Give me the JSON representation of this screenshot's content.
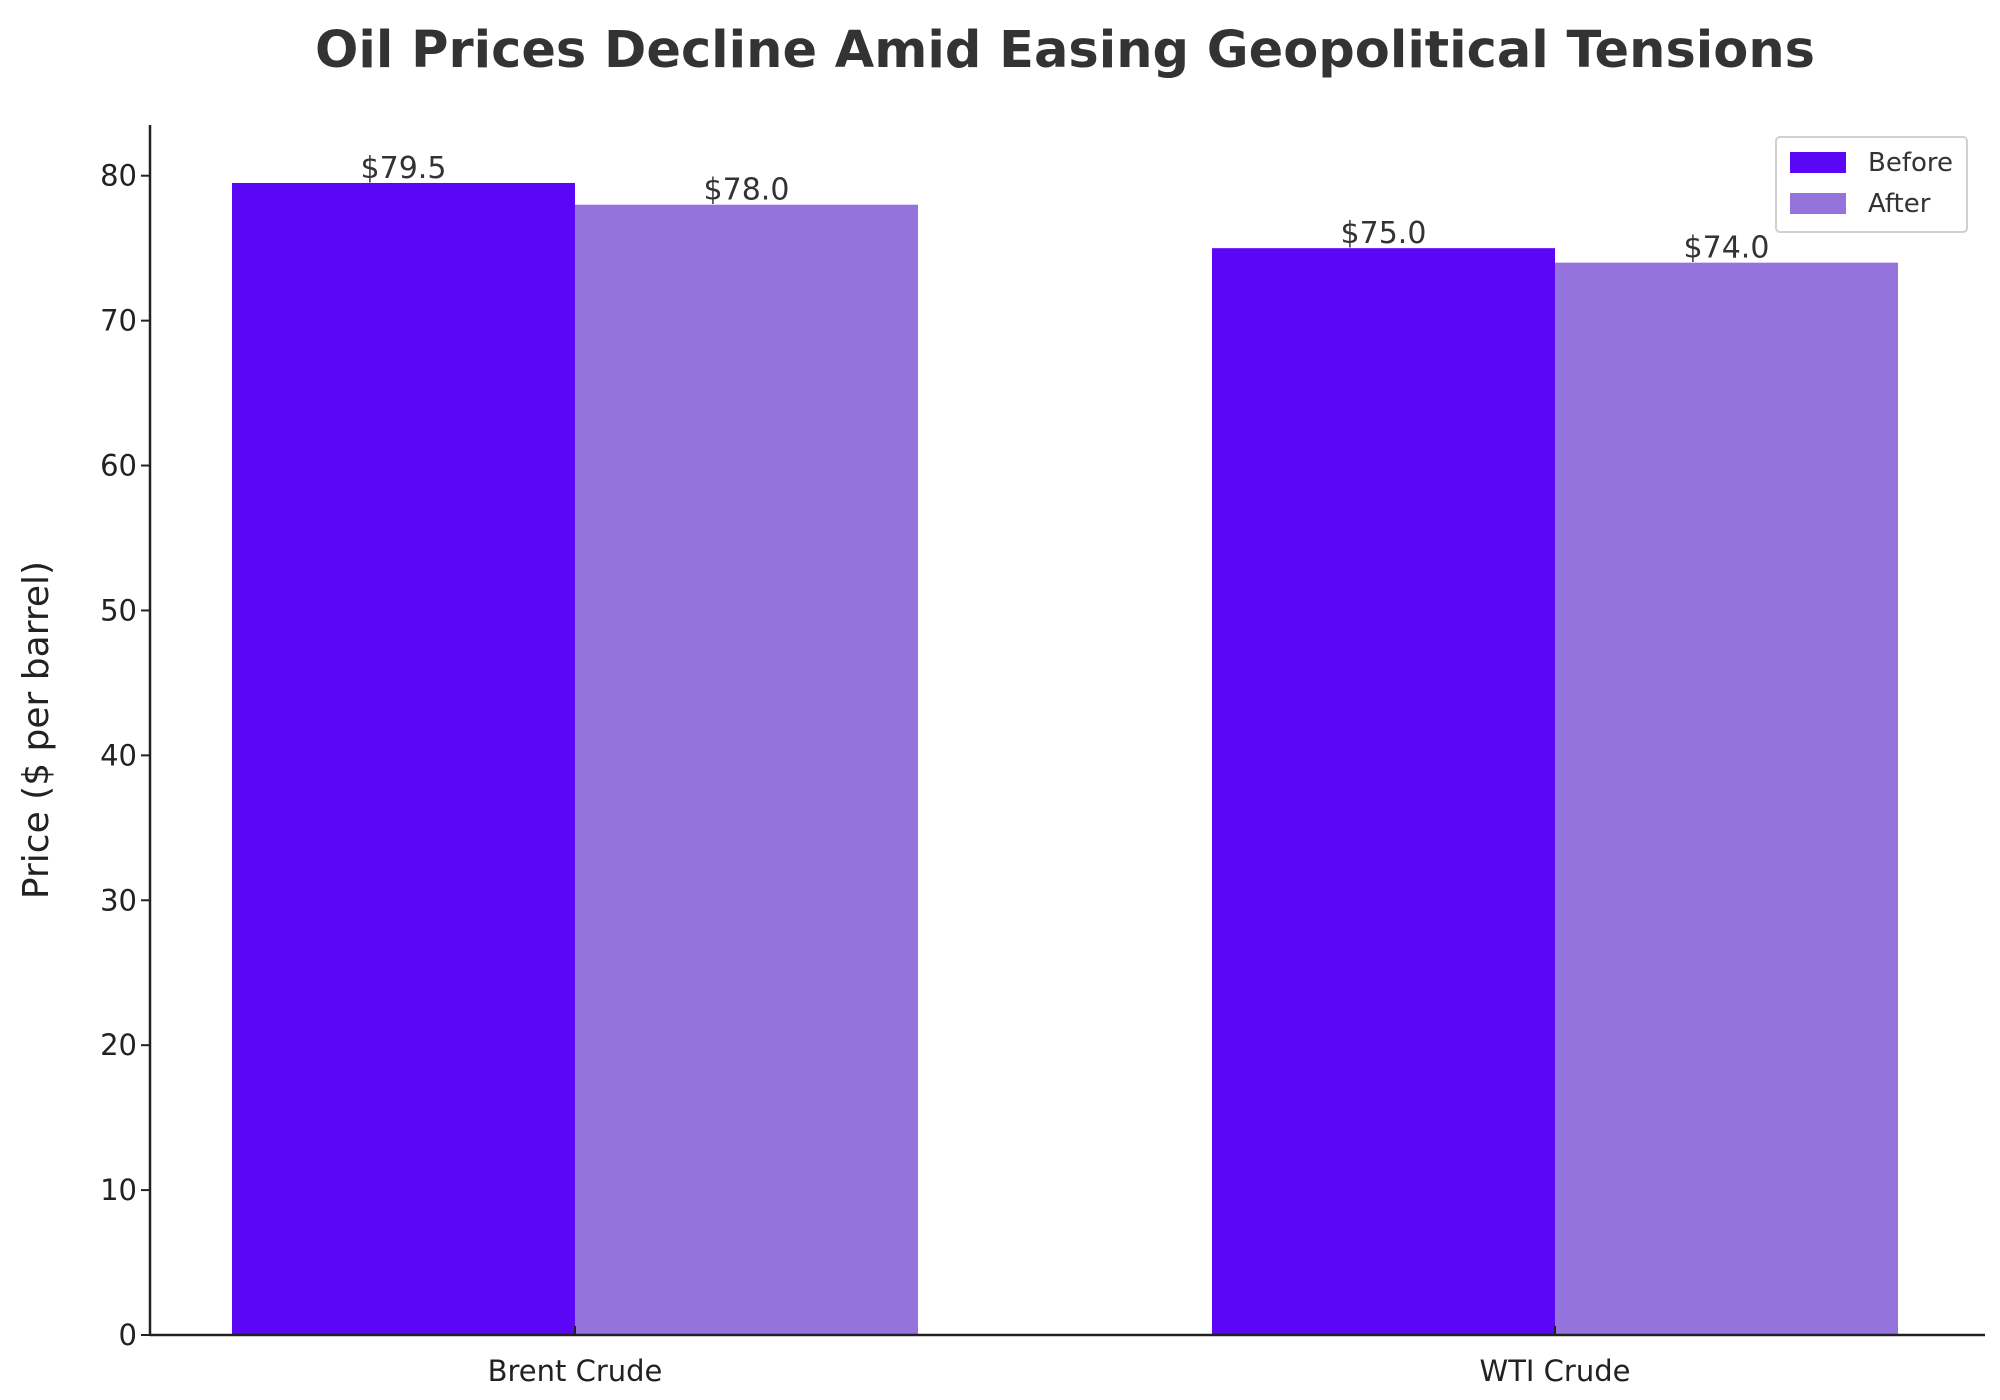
{
  "chart_data": {
    "type": "bar",
    "title": "Oil Prices Decline Amid Easing Geopolitical Tensions",
    "xlabel": "",
    "ylabel": "Price ($ per barrel)",
    "categories": [
      "Brent Crude",
      "WTI Crude"
    ],
    "series": [
      {
        "name": "Before",
        "color": "#5b06f5",
        "values": [
          79.5,
          75.0
        ],
        "labels": [
          "$79.5",
          "$75.0"
        ]
      },
      {
        "name": "After",
        "color": "#9473dc",
        "values": [
          78.0,
          74.0
        ],
        "labels": [
          "$78.0",
          "$74.0"
        ]
      }
    ],
    "ylim": [
      0,
      83.5
    ],
    "yticks": [
      0,
      10,
      20,
      30,
      40,
      50,
      60,
      70,
      80
    ],
    "grid": false,
    "legend_position": "top-right"
  }
}
